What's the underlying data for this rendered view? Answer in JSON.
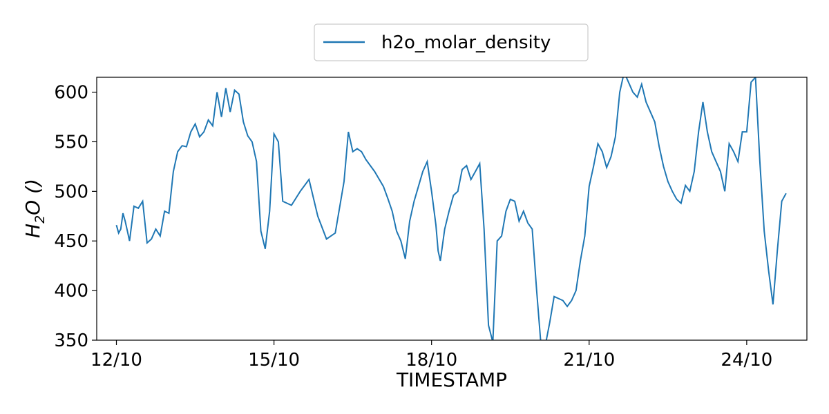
{
  "chart_data": {
    "type": "line",
    "xlabel": "TIMESTAMP",
    "ylabel_base": "H",
    "ylabel_sub": "2",
    "ylabel_rest": "O ()",
    "legend": {
      "placement": "top-center",
      "entry": "h2o_molar_density"
    },
    "x_ticks": [
      "12/10",
      "15/10",
      "18/10",
      "21/10",
      "24/10"
    ],
    "y_ticks": [
      "350",
      "400",
      "450",
      "500",
      "550",
      "600"
    ],
    "xlim": [
      "2023-10-11T15:00",
      "2023-10-25T03:30"
    ],
    "ylim": [
      350,
      615
    ],
    "grid": false,
    "series": [
      {
        "name": "h2o_molar_density",
        "color": "#1f77b4",
        "x": [
          "2023-10-12T00:00",
          "2023-10-12T01:00",
          "2023-10-12T02:00",
          "2023-10-12T03:00",
          "2023-10-12T04:00",
          "2023-10-12T05:00",
          "2023-10-12T06:00",
          "2023-10-12T08:00",
          "2023-10-12T10:00",
          "2023-10-12T12:00",
          "2023-10-12T14:00",
          "2023-10-12T16:00",
          "2023-10-12T18:00",
          "2023-10-12T20:00",
          "2023-10-12T22:00",
          "2023-10-13T00:00",
          "2023-10-13T02:00",
          "2023-10-13T04:00",
          "2023-10-13T06:00",
          "2023-10-13T08:00",
          "2023-10-13T10:00",
          "2023-10-13T12:00",
          "2023-10-13T14:00",
          "2023-10-13T16:00",
          "2023-10-13T18:00",
          "2023-10-13T20:00",
          "2023-10-13T22:00",
          "2023-10-14T00:00",
          "2023-10-14T02:00",
          "2023-10-14T04:00",
          "2023-10-14T06:00",
          "2023-10-14T08:00",
          "2023-10-14T10:00",
          "2023-10-14T12:00",
          "2023-10-14T14:00",
          "2023-10-14T16:00",
          "2023-10-14T18:00",
          "2023-10-14T20:00",
          "2023-10-14T22:00",
          "2023-10-15T00:00",
          "2023-10-15T02:00",
          "2023-10-15T04:00",
          "2023-10-15T06:00",
          "2023-10-15T08:00",
          "2023-10-15T12:00",
          "2023-10-15T16:00",
          "2023-10-15T20:00",
          "2023-10-16T00:00",
          "2023-10-16T04:00",
          "2023-10-16T08:00",
          "2023-10-16T10:00",
          "2023-10-16T12:00",
          "2023-10-16T14:00",
          "2023-10-16T16:00",
          "2023-10-16T18:00",
          "2023-10-16T22:00",
          "2023-10-17T02:00",
          "2023-10-17T04:00",
          "2023-10-17T06:00",
          "2023-10-17T08:00",
          "2023-10-17T10:00",
          "2023-10-17T12:00",
          "2023-10-17T14:00",
          "2023-10-17T16:00",
          "2023-10-17T18:00",
          "2023-10-17T20:00",
          "2023-10-17T22:00",
          "2023-10-18T00:00",
          "2023-10-18T02:00",
          "2023-10-18T03:00",
          "2023-10-18T04:00",
          "2023-10-18T06:00",
          "2023-10-18T08:00",
          "2023-10-18T10:00",
          "2023-10-18T12:00",
          "2023-10-18T14:00",
          "2023-10-18T16:00",
          "2023-10-18T18:00",
          "2023-10-18T20:00",
          "2023-10-18T22:00",
          "2023-10-19T00:00",
          "2023-10-19T02:00",
          "2023-10-19T04:00",
          "2023-10-19T06:00",
          "2023-10-19T08:00",
          "2023-10-19T10:00",
          "2023-10-19T12:00",
          "2023-10-19T14:00",
          "2023-10-19T16:00",
          "2023-10-19T18:00",
          "2023-10-19T20:00",
          "2023-10-19T22:00",
          "2023-10-20T00:00",
          "2023-10-20T02:00",
          "2023-10-20T04:00",
          "2023-10-20T06:00",
          "2023-10-20T08:00",
          "2023-10-20T10:00",
          "2023-10-20T12:00",
          "2023-10-20T14:00",
          "2023-10-20T16:00",
          "2023-10-20T18:00",
          "2023-10-20T20:00",
          "2023-10-20T22:00",
          "2023-10-21T00:00",
          "2023-10-21T02:00",
          "2023-10-21T04:00",
          "2023-10-21T06:00",
          "2023-10-21T08:00",
          "2023-10-21T10:00",
          "2023-10-21T12:00",
          "2023-10-21T14:00",
          "2023-10-21T16:00",
          "2023-10-21T18:00",
          "2023-10-21T20:00",
          "2023-10-21T22:00",
          "2023-10-22T00:00",
          "2023-10-22T02:00",
          "2023-10-22T04:00",
          "2023-10-22T06:00",
          "2023-10-22T08:00",
          "2023-10-22T10:00",
          "2023-10-22T12:00",
          "2023-10-22T14:00",
          "2023-10-22T16:00",
          "2023-10-22T18:00",
          "2023-10-22T20:00",
          "2023-10-22T22:00",
          "2023-10-23T00:00",
          "2023-10-23T02:00",
          "2023-10-23T04:00",
          "2023-10-23T06:00",
          "2023-10-23T08:00",
          "2023-10-23T10:00",
          "2023-10-23T12:00",
          "2023-10-23T14:00",
          "2023-10-23T16:00",
          "2023-10-23T18:00",
          "2023-10-23T20:00",
          "2023-10-23T22:00",
          "2023-10-24T00:00",
          "2023-10-24T02:00",
          "2023-10-24T04:00",
          "2023-10-24T06:00",
          "2023-10-24T08:00",
          "2023-10-24T10:00",
          "2023-10-24T12:00",
          "2023-10-24T14:00",
          "2023-10-24T16:00",
          "2023-10-24T18:00"
        ],
        "y": [
          466,
          458,
          462,
          478,
          470,
          460,
          450,
          485,
          483,
          490,
          448,
          452,
          462,
          455,
          480,
          478,
          520,
          540,
          546,
          545,
          560,
          568,
          555,
          560,
          572,
          566,
          600,
          575,
          604,
          580,
          602,
          598,
          570,
          556,
          550,
          530,
          460,
          442,
          480,
          558,
          550,
          490,
          488,
          486,
          500,
          512,
          475,
          452,
          458,
          510,
          560,
          540,
          543,
          540,
          532,
          520,
          505,
          493,
          480,
          460,
          450,
          432,
          470,
          490,
          505,
          520,
          530,
          500,
          466,
          440,
          430,
          462,
          480,
          496,
          500,
          522,
          526,
          512,
          520,
          528,
          462,
          365,
          348,
          450,
          455,
          480,
          492,
          490,
          470,
          480,
          468,
          462,
          400,
          345,
          345,
          368,
          394,
          392,
          390,
          384,
          390,
          400,
          430,
          455,
          505,
          525,
          548,
          540,
          524,
          535,
          555,
          600,
          620,
          610,
          600,
          595,
          608,
          590,
          580,
          570,
          545,
          525,
          510,
          500,
          492,
          488,
          506,
          500,
          520,
          560,
          590,
          560,
          540,
          530,
          520,
          500,
          548,
          540,
          530,
          560,
          560,
          610,
          615,
          530,
          460,
          420,
          386,
          440,
          490,
          498
        ]
      }
    ]
  }
}
